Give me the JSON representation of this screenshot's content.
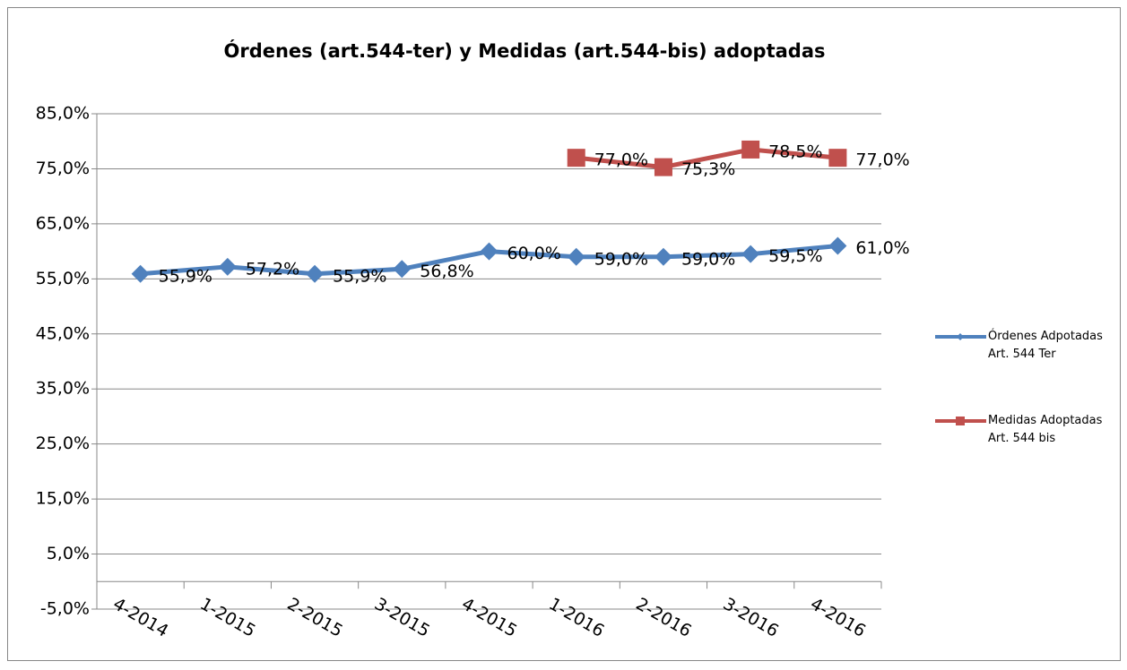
{
  "chart_data": {
    "type": "line",
    "title": "Órdenes  (art.544-ter) y Medidas (art.544-bis) adoptadas",
    "categories": [
      "4-2014",
      "1-2015",
      "2-2015",
      "3-2015",
      "4-2015",
      "1-2016",
      "2-2016",
      "3-2016",
      "4-2016"
    ],
    "series": [
      {
        "name": "Órdenes Adpotadas Art. 544 Ter",
        "color": "#4f81bd",
        "marker": "diamond",
        "values": [
          55.9,
          57.2,
          55.9,
          56.8,
          60.0,
          59.0,
          59.0,
          59.5,
          61.0
        ],
        "value_labels": [
          "55,9%",
          "57,2%",
          "55,9%",
          "56,8%",
          "60,0%",
          "59,0%",
          "59,0%",
          "59,5%",
          "61,0%"
        ]
      },
      {
        "name": "Medidas Adoptadas Art. 544 bis",
        "color": "#c0504d",
        "marker": "square",
        "values": [
          null,
          null,
          null,
          null,
          null,
          77.0,
          75.3,
          78.5,
          77.0
        ],
        "value_labels": [
          null,
          null,
          null,
          null,
          null,
          "77,0%",
          "75,3%",
          "78,5%",
          "77,0%"
        ]
      }
    ],
    "ylim": [
      -5,
      85
    ],
    "yticks": [
      {
        "value": -5,
        "label": "-5,0%"
      },
      {
        "value": 5,
        "label": "5,0%"
      },
      {
        "value": 15,
        "label": "15,0%"
      },
      {
        "value": 25,
        "label": "25,0%"
      },
      {
        "value": 35,
        "label": "35,0%"
      },
      {
        "value": 45,
        "label": "45,0%"
      },
      {
        "value": 55,
        "label": "55,0%"
      },
      {
        "value": 65,
        "label": "65,0%"
      },
      {
        "value": 75,
        "label": "75,0%"
      },
      {
        "value": 85,
        "label": "85,0%"
      }
    ],
    "grid": true,
    "legend": "right"
  }
}
